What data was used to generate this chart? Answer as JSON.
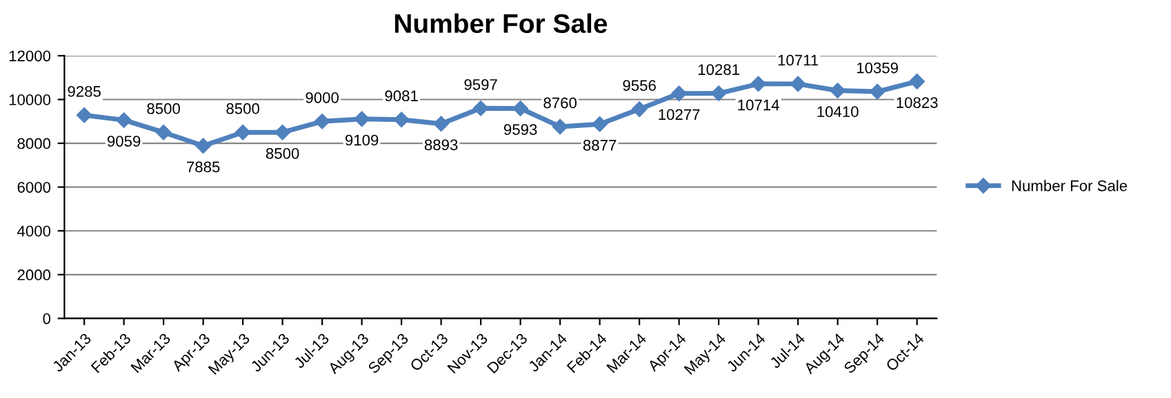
{
  "chart_data": {
    "type": "line",
    "title": "Number For Sale",
    "categories": [
      "Jan-13",
      "Feb-13",
      "Mar-13",
      "Apr-13",
      "May-13",
      "Jun-13",
      "Jul-13",
      "Aug-13",
      "Sep-13",
      "Oct-13",
      "Nov-13",
      "Dec-13",
      "Jan-14",
      "Feb-14",
      "Mar-14",
      "Apr-14",
      "May-14",
      "Jun-14",
      "Jul-14",
      "Aug-14",
      "Sep-14",
      "Oct-14"
    ],
    "series": [
      {
        "name": "Number For Sale",
        "color": "#4f81bd",
        "values": [
          9285,
          9059,
          8500,
          7885,
          8500,
          8500,
          9000,
          9109,
          9081,
          8893,
          9597,
          9593,
          8760,
          8877,
          9556,
          10277,
          10281,
          10714,
          10711,
          10410,
          10359,
          10823
        ]
      }
    ],
    "ylim": [
      0,
      12000
    ],
    "yticks": [
      0,
      2000,
      4000,
      6000,
      8000,
      10000,
      12000
    ],
    "grid": "y",
    "legend": "right",
    "marker": "diamond",
    "line_style": "solid",
    "data_labels": true
  }
}
